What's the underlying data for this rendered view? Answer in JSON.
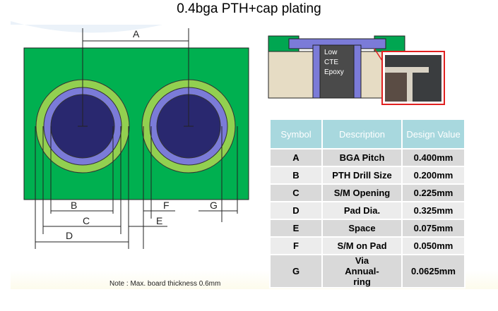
{
  "title": "0.4bga PTH+cap plating",
  "diagram": {
    "labels": {
      "A": "A",
      "B": "B",
      "C": "C",
      "D": "D",
      "E": "E",
      "F": "F",
      "G": "G"
    },
    "colors": {
      "board": "#00b050",
      "ring": "#92d050",
      "mask": "#7b7bd8",
      "pad": "#29286f"
    },
    "cross_section_label": [
      "Low",
      "CTE",
      "Epoxy"
    ]
  },
  "table": {
    "headers": [
      "Symbol",
      "Description",
      "Design Value"
    ],
    "rows": [
      [
        "A",
        "BGA Pitch",
        "0.400mm"
      ],
      [
        "B",
        "PTH Drill Size",
        "0.200mm"
      ],
      [
        "C",
        "S/M Opening",
        "0.225mm"
      ],
      [
        "D",
        "Pad Dia.",
        "0.325mm"
      ],
      [
        "E",
        "Space",
        "0.075mm"
      ],
      [
        "F",
        "S/M on Pad",
        "0.050mm"
      ],
      [
        "G",
        "Via Annual-ring",
        "0.0625mm"
      ]
    ]
  },
  "note": "Note : Max. board thickness 0.6mm"
}
